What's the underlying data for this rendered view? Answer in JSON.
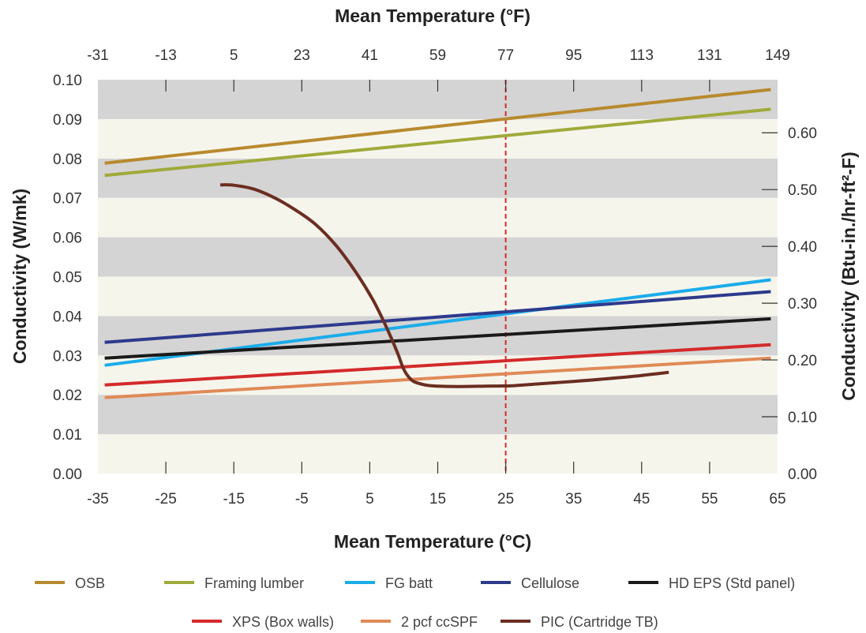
{
  "chart_data": {
    "type": "line",
    "xlabel": "Mean Temperature (°C)",
    "x2label": "Mean Temperature (°F)",
    "ylabel": "Conductivity (W/mk)",
    "y2label": "Conductivity (Btu-in./hr-ft²-F)",
    "xlim": [
      -35,
      65
    ],
    "ylim": [
      0,
      0.1
    ],
    "x2lim": [
      -31,
      149
    ],
    "y2lim": [
      0,
      0.6934
    ],
    "x_ticks": [
      -35,
      -25,
      -15,
      -5,
      5,
      15,
      25,
      35,
      45,
      55,
      65
    ],
    "x_tick_labels": [
      "-35",
      "-25",
      "-15",
      "-5",
      "5",
      "15",
      "25",
      "35",
      "45",
      "55",
      "65"
    ],
    "y_ticks": [
      0,
      0.01,
      0.02,
      0.03,
      0.04,
      0.05,
      0.06,
      0.07,
      0.08,
      0.09,
      0.1
    ],
    "y_tick_labels": [
      "0.00",
      "0.01",
      "0.02",
      "0.03",
      "0.04",
      "0.05",
      "0.06",
      "0.07",
      "0.08",
      "0.09",
      "0.10"
    ],
    "x2_ticks": [
      -31,
      -13,
      5,
      23,
      41,
      59,
      77,
      95,
      113,
      131,
      149
    ],
    "x2_tick_labels": [
      "-31",
      "-13",
      "5",
      "23",
      "41",
      "59",
      "77",
      "95",
      "113",
      "131",
      "149"
    ],
    "y2_ticks": [
      0,
      0.1,
      0.2,
      0.3,
      0.4,
      0.5,
      0.6
    ],
    "y2_tick_labels": [
      "0.00",
      "0.10",
      "0.20",
      "0.30",
      "0.40",
      "0.50",
      "0.60"
    ],
    "band_colors": [
      "#f6f5ec",
      "#d4d4d4"
    ],
    "reference_line": {
      "x": 25,
      "color": "#d42a2a"
    },
    "legend_position": "bottom",
    "series": [
      {
        "name": "OSB",
        "color": "#b88a2e",
        "x": [
          -34,
          64
        ],
        "y": [
          0.0788,
          0.0975
        ]
      },
      {
        "name": "Framing lumber",
        "color": "#a0aa3a",
        "x": [
          -34,
          64
        ],
        "y": [
          0.0757,
          0.0925
        ]
      },
      {
        "name": "FG batt",
        "color": "#1aacea",
        "x": [
          -34,
          64
        ],
        "y": [
          0.0275,
          0.0492
        ]
      },
      {
        "name": "Cellulose",
        "color": "#2d3a8c",
        "x": [
          -34,
          64
        ],
        "y": [
          0.0333,
          0.0462
        ]
      },
      {
        "name": "HD EPS (Std panel)",
        "color": "#1a1a1a",
        "x": [
          -34,
          64
        ],
        "y": [
          0.0293,
          0.0393
        ]
      },
      {
        "name": "XPS (Box walls)",
        "color": "#d42a2a",
        "x": [
          -34,
          64
        ],
        "y": [
          0.0225,
          0.0327
        ]
      },
      {
        "name": "2 pcf ccSPF",
        "color": "#e08a58",
        "x": [
          -34,
          64
        ],
        "y": [
          0.0193,
          0.0293
        ]
      },
      {
        "name": "PIC (Cartridge TB)",
        "color": "#6b2e22",
        "x": [
          -17,
          -15,
          -12,
          -9,
          -6,
          -3,
          0,
          3,
          5.5,
          7.5,
          9,
          10,
          11,
          12,
          14,
          18,
          22,
          26,
          30,
          35,
          40,
          45,
          49
        ],
        "y": [
          0.0733,
          0.0732,
          0.0722,
          0.07,
          0.067,
          0.0633,
          0.058,
          0.051,
          0.044,
          0.037,
          0.031,
          0.0265,
          0.024,
          0.023,
          0.0223,
          0.0221,
          0.0222,
          0.0223,
          0.0228,
          0.0234,
          0.0241,
          0.0249,
          0.0257
        ]
      }
    ]
  }
}
